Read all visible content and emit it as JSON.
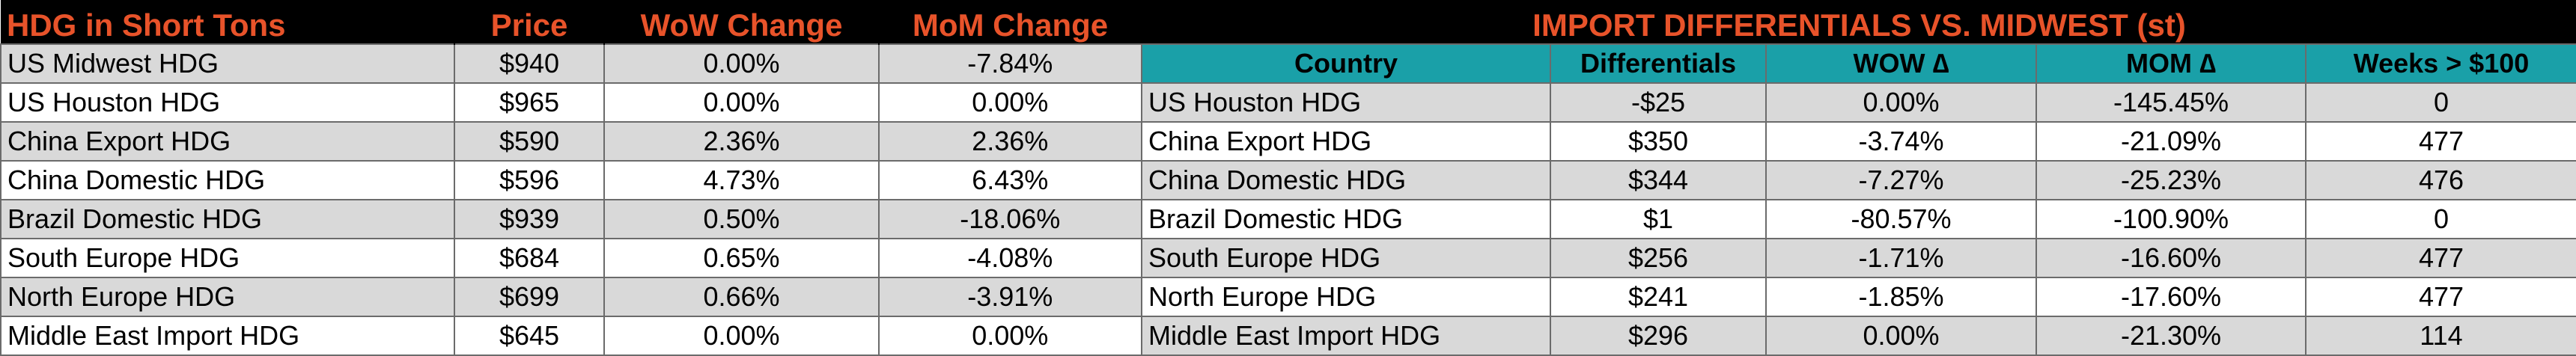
{
  "left_table": {
    "headers": [
      "HDG in Short Tons",
      "Price",
      "WoW Change",
      "MoM Change"
    ],
    "rows": [
      [
        "US Midwest HDG",
        "$940",
        "0.00%",
        "-7.84%"
      ],
      [
        "US Houston HDG",
        "$965",
        "0.00%",
        "0.00%"
      ],
      [
        "China Export HDG",
        "$590",
        "2.36%",
        "2.36%"
      ],
      [
        "China Domestic HDG",
        "$596",
        "4.73%",
        "6.43%"
      ],
      [
        "Brazil Domestic HDG",
        "$939",
        "0.50%",
        "-18.06%"
      ],
      [
        "South Europe HDG",
        "$684",
        "0.65%",
        "-4.08%"
      ],
      [
        "North Europe HDG",
        "$699",
        "0.66%",
        "-3.91%"
      ],
      [
        "Middle East Import HDG",
        "$645",
        "0.00%",
        "0.00%"
      ]
    ]
  },
  "right_table": {
    "title": "IMPORT DIFFERENTIALS VS. MIDWEST (st)",
    "headers": [
      "Country",
      "Differentials",
      "WOW ∆",
      "MOM ∆",
      "Weeks > $100"
    ],
    "rows": [
      [
        "US Houston HDG",
        "-$25",
        "0.00%",
        "-145.45%",
        "0"
      ],
      [
        "China Export HDG",
        "$350",
        "-3.74%",
        "-21.09%",
        "477"
      ],
      [
        "China Domestic HDG",
        "$344",
        "-7.27%",
        "-25.23%",
        "476"
      ],
      [
        "Brazil Domestic HDG",
        "$1",
        "-80.57%",
        "-100.90%",
        "0"
      ],
      [
        "South Europe HDG",
        "$256",
        "-1.71%",
        "-16.60%",
        "477"
      ],
      [
        "North Europe HDG",
        "$241",
        "-1.85%",
        "-17.60%",
        "477"
      ],
      [
        "Middle East Import HDG",
        "$296",
        "0.00%",
        "-21.30%",
        "114"
      ]
    ]
  },
  "colors": {
    "header_bg": "#000000",
    "header_text": "#e8532a",
    "subheader_bg": "#1aa0a8",
    "row_shade": "#d9d9d9",
    "row_plain": "#ffffff"
  }
}
